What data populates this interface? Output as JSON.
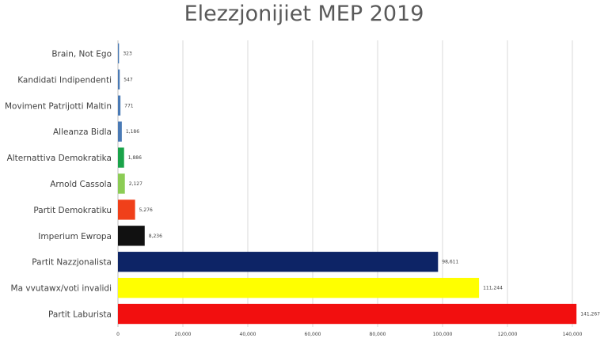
{
  "chart_data": {
    "type": "bar",
    "orientation": "horizontal",
    "title": "Elezzjonijiet MEP 2019",
    "xlabel": "",
    "ylabel": "",
    "grid": true,
    "xlim": [
      0,
      140000
    ],
    "xticks": [
      0,
      20000,
      40000,
      60000,
      80000,
      100000,
      120000,
      140000
    ],
    "xtick_labels": [
      "0",
      "20,000",
      "40,000",
      "60,000",
      "80,000",
      "100,000",
      "120,000",
      "140,000"
    ],
    "categories": [
      "Brain, Not Ego",
      "Kandidati Indipendenti",
      "Moviment Patrijotti Maltin",
      "Alleanza Bidla",
      "Alternattiva Demokratika",
      "Arnold Cassola",
      "Partit Demokratiku",
      "Imperium Ewropa",
      "Partit Nazzjonalista",
      "Ma vvutawx/voti invalidi",
      "Partit Laburista"
    ],
    "values": [
      323,
      547,
      771,
      1186,
      1886,
      2127,
      5276,
      8236,
      98611,
      111244,
      141267
    ],
    "value_labels": [
      "323",
      "547",
      "771",
      "1,186",
      "1,886",
      "2,127",
      "5,276",
      "8,236",
      "98,611",
      "111,244",
      "141,267"
    ],
    "colors": [
      "#4a7ab5",
      "#4a7ab5",
      "#4a7ab5",
      "#4a7ab5",
      "#1aa34a",
      "#8ccc55",
      "#f0401a",
      "#111111",
      "#0d2466",
      "#ffff00",
      "#f20f0f"
    ]
  }
}
